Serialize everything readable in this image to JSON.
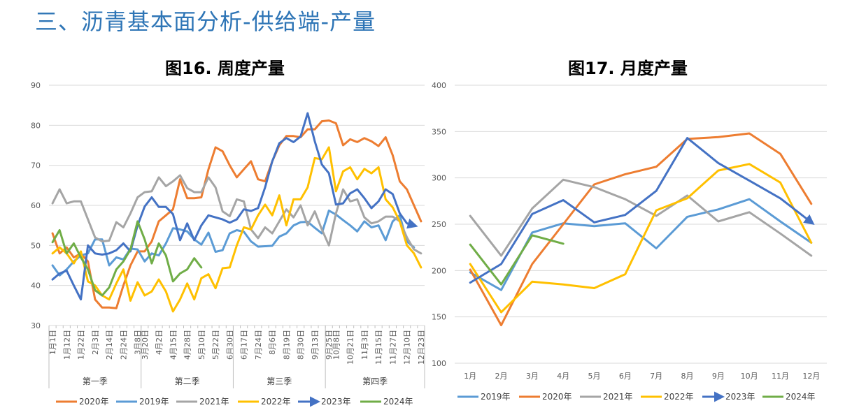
{
  "page": {
    "title": "三、沥青基本面分析-供给端-产量"
  },
  "chart_data": [
    {
      "type": "line",
      "title": "图16. 周度产量",
      "ylim": [
        30,
        90
      ],
      "yticks": [
        30,
        40,
        50,
        60,
        70,
        80,
        90
      ],
      "grid": true,
      "x_count": 53,
      "tick_labels": [
        "1月1日",
        "1月12日",
        "1月22日",
        "2月3日",
        "2月14日",
        "2月24日",
        "3月8日",
        "3月20日",
        "4月2日",
        "4月15日",
        "4月28日",
        "5月10日",
        "5月22日",
        "6月30日",
        "6月17日",
        "7月24日",
        "8月6日",
        "8月19日",
        "8月30日",
        "9月13日",
        "9月25日",
        "10月8日",
        "10月21日",
        "11月3日",
        "11月15日",
        "11月27日",
        "12月10日",
        "12月23日"
      ],
      "quarters": [
        "第一季",
        "第二季",
        "第三季",
        "第四季"
      ],
      "legend_position": "bottom",
      "series": [
        {
          "name": "2020年",
          "color": "#ed7d31",
          "values": [
            53,
            48,
            49.5,
            47,
            48,
            46,
            36.5,
            34.5,
            34.5,
            34.3,
            40,
            45,
            48.5,
            48.5,
            51,
            56,
            57.5,
            59,
            66.5,
            61.8,
            61.8,
            62,
            69,
            74.5,
            73.5,
            70,
            67,
            69,
            71,
            66.5,
            66,
            71,
            75,
            77.3,
            77.3,
            77,
            79,
            79,
            81,
            81.2,
            80.5,
            75,
            76.5,
            75.8,
            76.8,
            76,
            74.8,
            77,
            72.5,
            66,
            64,
            60,
            56
          ]
        },
        {
          "name": "2019年",
          "color": "#5b9bd5",
          "values": [
            45,
            42.5,
            44,
            46,
            47.5,
            48,
            51.5,
            51.5,
            45,
            47,
            46.5,
            49.2,
            49,
            46,
            48,
            47.5,
            50.5,
            54.3,
            54,
            53.5,
            51.5,
            50.2,
            53.2,
            48.4,
            48.8,
            53,
            53.8,
            53.4,
            51,
            49.7,
            49.8,
            49.9,
            52.2,
            53,
            55,
            55.8,
            55.9,
            54.4,
            53,
            58.7,
            57.7,
            56.3,
            55,
            53.5,
            56,
            54.5,
            55,
            51.3,
            56,
            57.5,
            51,
            49.5,
            null
          ]
        },
        {
          "name": "2021年",
          "color": "#a5a5a5",
          "values": [
            60.5,
            64,
            60.5,
            61,
            61,
            56.5,
            52,
            51,
            51.2,
            55.8,
            54.5,
            58,
            62,
            63.3,
            63.5,
            67,
            64.8,
            66,
            67.5,
            64.3,
            63.3,
            63.3,
            67,
            64.5,
            58.5,
            57.3,
            61.5,
            61,
            54,
            51.8,
            54.5,
            53,
            56,
            59,
            57,
            60,
            55,
            58.5,
            54,
            50,
            58,
            64,
            61,
            61.5,
            57,
            55.5,
            56,
            57.2,
            57.2,
            56,
            52,
            49,
            48
          ]
        },
        {
          "name": "2022年",
          "color": "#ffc000",
          "values": [
            48,
            49.5,
            48,
            45.5,
            48.5,
            41,
            40,
            37.5,
            36.5,
            40.5,
            44,
            36.2,
            40.8,
            37.5,
            38.5,
            41.5,
            38.5,
            33.5,
            36.5,
            40.5,
            36.5,
            41.8,
            42.8,
            39.3,
            44.3,
            44.5,
            50,
            54.5,
            54,
            57.5,
            60.2,
            57.5,
            62.5,
            55,
            61.5,
            61.5,
            64.5,
            71.8,
            71.5,
            74.5,
            63.5,
            68.5,
            69.5,
            66.5,
            69.1,
            68,
            69.5,
            61.5,
            59.5,
            56,
            50,
            48,
            44.5
          ]
        },
        {
          "name": "2023年",
          "color": "#4472c4",
          "arrow": true,
          "values": [
            41.5,
            43,
            43.7,
            40,
            36.5,
            50,
            48,
            47.7,
            48,
            48.8,
            50.5,
            48.5,
            55,
            59.7,
            62,
            59.6,
            59.6,
            57.8,
            51.3,
            55.5,
            51.3,
            55,
            57.5,
            57,
            56.5,
            55.7,
            56.5,
            59,
            58.6,
            59.3,
            64.5,
            71,
            75.5,
            76.8,
            75.8,
            77.2,
            83,
            76,
            70.2,
            68,
            60.2,
            60.5,
            63,
            64,
            61.8,
            59.3,
            61,
            64,
            62.8,
            58,
            55.5,
            55,
            null
          ]
        },
        {
          "name": "2024年",
          "color": "#70ad47",
          "values": [
            50.8,
            53.8,
            48,
            50.5,
            47,
            44,
            38.8,
            37.5,
            39.5,
            44,
            46,
            49,
            56,
            51.5,
            45.5,
            50.5,
            47.5,
            41,
            43,
            44,
            46.8,
            44.5,
            null,
            null,
            null,
            null,
            null,
            null,
            null,
            null,
            null,
            null,
            null,
            null,
            null,
            null,
            null,
            null,
            null,
            null,
            null,
            null,
            null,
            null,
            null,
            null,
            null,
            null,
            null,
            null,
            null,
            null,
            null
          ]
        }
      ]
    },
    {
      "type": "line",
      "title": "图17. 月度产量",
      "ylim": [
        100,
        400
      ],
      "yticks": [
        100,
        150,
        200,
        250,
        300,
        350,
        400
      ],
      "grid": true,
      "categories": [
        "1月",
        "2月",
        "3月",
        "4月",
        "5月",
        "6月",
        "7月",
        "8月",
        "9月",
        "10月",
        "11月",
        "12月"
      ],
      "legend_position": "bottom",
      "series": [
        {
          "name": "2019年",
          "color": "#5b9bd5",
          "values": [
            198,
            179,
            241,
            251,
            248,
            251,
            224,
            258,
            266,
            277,
            253,
            230
          ]
        },
        {
          "name": "2020年",
          "color": "#ed7d31",
          "values": [
            201,
            141,
            207,
            250,
            293,
            304,
            312,
            342,
            344,
            348,
            326,
            272
          ]
        },
        {
          "name": "2021年",
          "color": "#a5a5a5",
          "values": [
            259,
            216,
            267,
            298,
            290,
            277,
            259,
            281,
            253,
            263,
            240,
            216
          ]
        },
        {
          "name": "2022年",
          "color": "#ffc000",
          "values": [
            207,
            155,
            188,
            185,
            181,
            196,
            265,
            278,
            308,
            315,
            295,
            230
          ]
        },
        {
          "name": "2023年",
          "color": "#4472c4",
          "arrow": true,
          "values": [
            187,
            207,
            261,
            276,
            252,
            260,
            286,
            343,
            316,
            297,
            278,
            252
          ]
        },
        {
          "name": "2024年",
          "color": "#70ad47",
          "values": [
            228,
            185,
            238,
            229,
            null,
            null,
            null,
            null,
            null,
            null,
            null,
            null
          ]
        }
      ]
    }
  ]
}
